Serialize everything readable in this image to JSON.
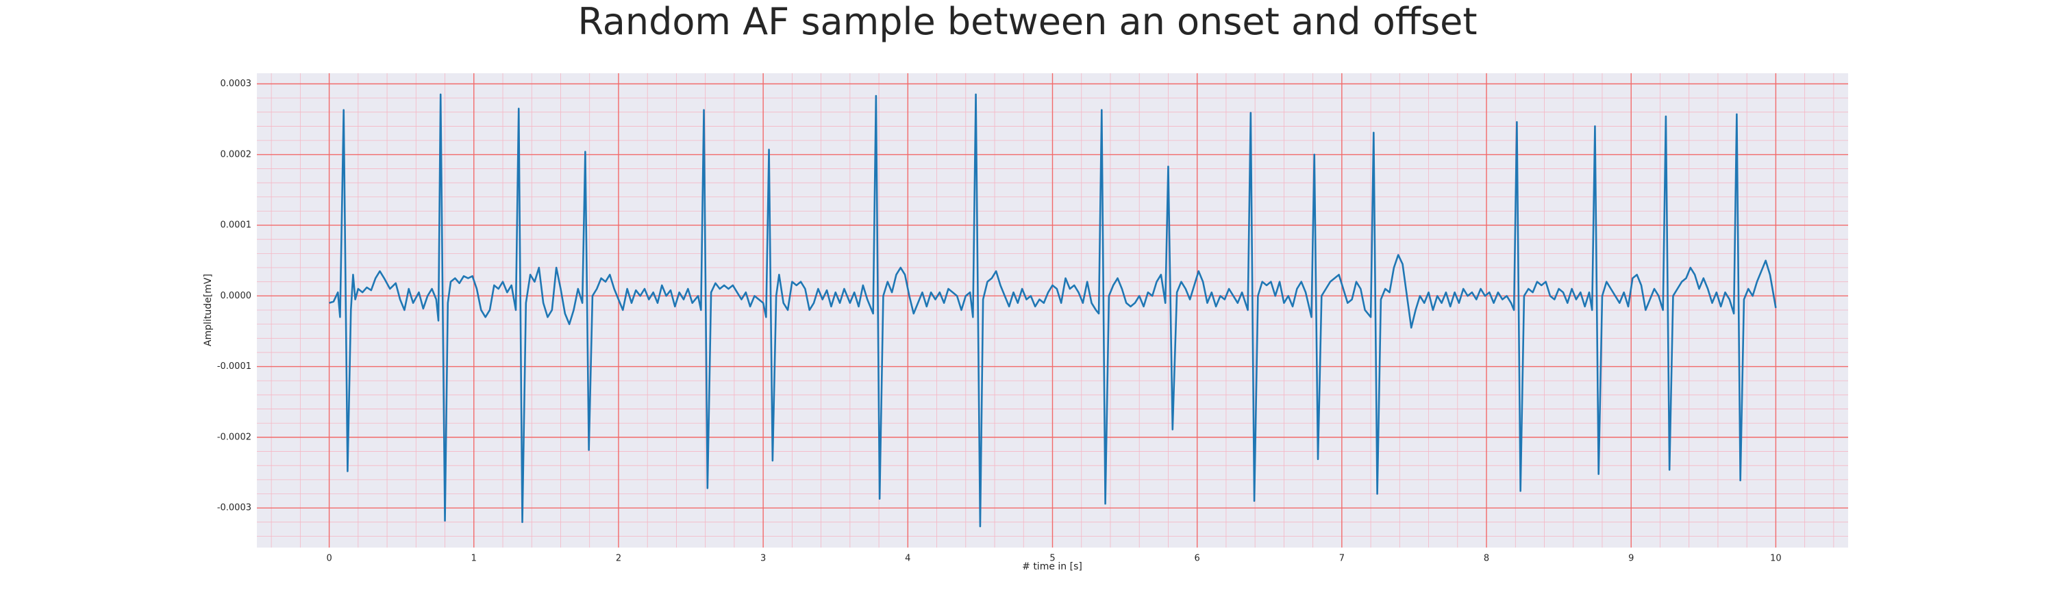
{
  "chart_data": {
    "type": "line",
    "title": "Random AF sample between an onset and offset",
    "xlabel": "# time in [s]",
    "ylabel": "Amplitude[mV]",
    "color": "#1f77b4",
    "grid": true,
    "minor_grid": true,
    "xlim": [
      -0.5,
      10.5
    ],
    "xticks": [
      0,
      1,
      2,
      3,
      4,
      5,
      6,
      7,
      8,
      9,
      10
    ],
    "ylim": [
      -0.000356,
      0.000315
    ],
    "yticks": [
      {
        "value": 0.0003,
        "label": "0.0003"
      },
      {
        "value": 0.0002,
        "label": "0.0002"
      },
      {
        "value": 0.0001,
        "label": "0.0001"
      },
      {
        "value": 0,
        "label": "0.0000"
      },
      {
        "value": -0.0001,
        "label": "-0.0001"
      },
      {
        "value": -0.0002,
        "label": "-0.0002"
      },
      {
        "value": -0.0003,
        "label": "-0.0003"
      }
    ],
    "x": [
      0,
      0.03,
      0.06,
      0.075,
      0.1,
      0.127,
      0.15,
      0.165,
      0.18,
      0.2,
      0.23,
      0.26,
      0.29,
      0.32,
      0.35,
      0.38,
      0.42,
      0.46,
      0.49,
      0.52,
      0.55,
      0.58,
      0.62,
      0.65,
      0.68,
      0.71,
      0.74,
      0.755,
      0.77,
      0.8,
      0.82,
      0.84,
      0.87,
      0.9,
      0.93,
      0.96,
      0.99,
      1.02,
      1.05,
      1.08,
      1.11,
      1.14,
      1.17,
      1.2,
      1.23,
      1.26,
      1.29,
      1.31,
      1.335,
      1.36,
      1.39,
      1.42,
      1.45,
      1.48,
      1.51,
      1.54,
      1.57,
      1.6,
      1.63,
      1.66,
      1.69,
      1.72,
      1.75,
      1.77,
      1.795,
      1.82,
      1.85,
      1.88,
      1.91,
      1.94,
      1.97,
      2.0,
      2.03,
      2.06,
      2.09,
      2.12,
      2.15,
      2.18,
      2.21,
      2.24,
      2.27,
      2.3,
      2.33,
      2.36,
      2.39,
      2.42,
      2.45,
      2.48,
      2.51,
      2.55,
      2.57,
      2.59,
      2.615,
      2.64,
      2.67,
      2.7,
      2.73,
      2.76,
      2.79,
      2.82,
      2.85,
      2.88,
      2.91,
      2.94,
      2.97,
      3.0,
      3.02,
      3.04,
      3.065,
      3.09,
      3.11,
      3.14,
      3.17,
      3.2,
      3.23,
      3.26,
      3.29,
      3.32,
      3.35,
      3.38,
      3.41,
      3.44,
      3.47,
      3.5,
      3.53,
      3.56,
      3.6,
      3.63,
      3.66,
      3.69,
      3.72,
      3.76,
      3.78,
      3.805,
      3.83,
      3.86,
      3.89,
      3.92,
      3.95,
      3.98,
      4.01,
      4.04,
      4.07,
      4.1,
      4.13,
      4.16,
      4.19,
      4.22,
      4.25,
      4.28,
      4.31,
      4.34,
      4.37,
      4.4,
      4.43,
      4.45,
      4.47,
      4.5,
      4.52,
      4.55,
      4.58,
      4.61,
      4.64,
      4.67,
      4.7,
      4.73,
      4.76,
      4.79,
      4.82,
      4.85,
      4.88,
      4.91,
      4.94,
      4.97,
      5.0,
      5.03,
      5.06,
      5.09,
      5.12,
      5.15,
      5.18,
      5.21,
      5.24,
      5.27,
      5.3,
      5.32,
      5.34,
      5.365,
      5.39,
      5.42,
      5.45,
      5.48,
      5.51,
      5.54,
      5.57,
      5.6,
      5.63,
      5.66,
      5.69,
      5.72,
      5.75,
      5.78,
      5.8,
      5.83,
      5.86,
      5.89,
      5.92,
      5.95,
      5.98,
      6.01,
      6.04,
      6.07,
      6.1,
      6.13,
      6.16,
      6.19,
      6.22,
      6.25,
      6.28,
      6.31,
      6.35,
      6.37,
      6.395,
      6.42,
      6.45,
      6.48,
      6.51,
      6.54,
      6.57,
      6.6,
      6.63,
      6.66,
      6.69,
      6.72,
      6.75,
      6.79,
      6.81,
      6.835,
      6.86,
      6.89,
      6.92,
      6.95,
      6.98,
      7.01,
      7.04,
      7.07,
      7.1,
      7.13,
      7.16,
      7.2,
      7.22,
      7.245,
      7.27,
      7.3,
      7.33,
      7.36,
      7.39,
      7.42,
      7.45,
      7.48,
      7.51,
      7.54,
      7.57,
      7.6,
      7.63,
      7.66,
      7.69,
      7.72,
      7.75,
      7.78,
      7.81,
      7.84,
      7.87,
      7.9,
      7.93,
      7.96,
      7.99,
      8.02,
      8.05,
      8.08,
      8.11,
      8.14,
      8.17,
      8.19,
      8.21,
      8.235,
      8.26,
      8.29,
      8.32,
      8.35,
      8.38,
      8.41,
      8.44,
      8.47,
      8.5,
      8.53,
      8.56,
      8.59,
      8.62,
      8.65,
      8.68,
      8.71,
      8.73,
      8.75,
      8.775,
      8.8,
      8.83,
      8.86,
      8.89,
      8.92,
      8.95,
      8.98,
      9.01,
      9.04,
      9.07,
      9.1,
      9.13,
      9.16,
      9.19,
      9.22,
      9.24,
      9.265,
      9.29,
      9.32,
      9.35,
      9.38,
      9.41,
      9.44,
      9.47,
      9.5,
      9.53,
      9.56,
      9.59,
      9.62,
      9.65,
      9.68,
      9.71,
      9.73,
      9.755,
      9.78,
      9.81,
      9.84,
      9.87,
      9.9,
      9.93,
      9.96,
      10.0
    ],
    "values": [
      -1e-05,
      -8e-06,
      5e-06,
      -3e-05,
      0.000263,
      -0.000248,
      -2e-05,
      3e-05,
      -5e-06,
      1e-05,
      5e-06,
      1.2e-05,
      8e-06,
      2.5e-05,
      3.5e-05,
      2.5e-05,
      1e-05,
      1.8e-05,
      -5e-06,
      -2e-05,
      1e-05,
      -1e-05,
      5e-06,
      -1.8e-05,
      0,
      1e-05,
      -5e-06,
      -3.5e-05,
      0.000285,
      -0.000318,
      -1e-05,
      2e-05,
      2.5e-05,
      1.8e-05,
      2.8e-05,
      2.5e-05,
      2.8e-05,
      1e-05,
      -2e-05,
      -3e-05,
      -2e-05,
      1.5e-05,
      1e-05,
      2e-05,
      5e-06,
      1.5e-05,
      -2e-05,
      0.000265,
      -0.00032,
      -1e-05,
      3e-05,
      2e-05,
      4e-05,
      -1e-05,
      -3e-05,
      -2e-05,
      4e-05,
      1e-05,
      -2.5e-05,
      -4e-05,
      -2e-05,
      1e-05,
      -1e-05,
      0.000204,
      -0.000218,
      0,
      1e-05,
      2.5e-05,
      2e-05,
      3e-05,
      1e-05,
      -5e-06,
      -2e-05,
      1e-05,
      -1e-05,
      8e-06,
      0,
      1e-05,
      -5e-06,
      5e-06,
      -1e-05,
      1.5e-05,
      0,
      8e-06,
      -1.5e-05,
      5e-06,
      -5e-06,
      1e-05,
      -1e-05,
      0,
      -2e-05,
      0.000263,
      -0.000272,
      5e-06,
      1.8e-05,
      1e-05,
      1.5e-05,
      1e-05,
      1.5e-05,
      5e-06,
      -5e-06,
      5e-06,
      -1.5e-05,
      0,
      -5e-06,
      -1e-05,
      -3e-05,
      0.000207,
      -0.000233,
      0,
      3e-05,
      -1e-05,
      -2e-05,
      2e-05,
      1.5e-05,
      2e-05,
      1e-05,
      -2e-05,
      -1e-05,
      1e-05,
      -5e-06,
      8e-06,
      -1.5e-05,
      5e-06,
      -1e-05,
      1e-05,
      -1e-05,
      5e-06,
      -1.5e-05,
      1.5e-05,
      -5e-06,
      -2.5e-05,
      0.000283,
      -0.000287,
      0,
      2e-05,
      5e-06,
      3e-05,
      4e-05,
      3e-05,
      0,
      -2.5e-05,
      -1e-05,
      5e-06,
      -1.5e-05,
      5e-06,
      -5e-06,
      5e-06,
      -1e-05,
      1e-05,
      5e-06,
      0,
      -2e-05,
      0,
      5e-06,
      -3e-05,
      0.000285,
      -0.000326,
      -5e-06,
      2e-05,
      2.5e-05,
      3.5e-05,
      1.5e-05,
      0,
      -1.5e-05,
      5e-06,
      -1e-05,
      1e-05,
      -5e-06,
      0,
      -1.5e-05,
      -5e-06,
      -1e-05,
      5e-06,
      1.5e-05,
      1e-05,
      -1e-05,
      2.5e-05,
      1e-05,
      1.5e-05,
      5e-06,
      -1e-05,
      2e-05,
      -1e-05,
      -2e-05,
      -2.5e-05,
      0.000263,
      -0.000294,
      0,
      1.5e-05,
      2.5e-05,
      1e-05,
      -1e-05,
      -1.5e-05,
      -1e-05,
      0,
      -1.5e-05,
      5e-06,
      0,
      2e-05,
      3e-05,
      -1e-05,
      0.000183,
      -0.000189,
      5e-06,
      2e-05,
      1e-05,
      -5e-06,
      1.5e-05,
      3.5e-05,
      2e-05,
      -1e-05,
      5e-06,
      -1.5e-05,
      0,
      -5e-06,
      1e-05,
      0,
      -1e-05,
      5e-06,
      -2e-05,
      0.000259,
      -0.00029,
      0,
      2e-05,
      1.5e-05,
      2e-05,
      0,
      2e-05,
      -1e-05,
      0,
      -1.5e-05,
      1e-05,
      2e-05,
      5e-06,
      -3e-05,
      0.0002,
      -0.000231,
      0,
      1e-05,
      2e-05,
      2.5e-05,
      3e-05,
      1e-05,
      -1e-05,
      -5e-06,
      2e-05,
      1e-05,
      -2e-05,
      -3e-05,
      0.000231,
      -0.00028,
      -5e-06,
      1e-05,
      5e-06,
      4e-05,
      5.8e-05,
      4.5e-05,
      0,
      -4.5e-05,
      -2e-05,
      0,
      -1e-05,
      5e-06,
      -2e-05,
      0,
      -1e-05,
      5e-06,
      -1.5e-05,
      5e-06,
      -1e-05,
      1e-05,
      0,
      5e-06,
      -5e-06,
      1e-05,
      0,
      5e-06,
      -1e-05,
      5e-06,
      -5e-06,
      0,
      -1e-05,
      -2e-05,
      0.000246,
      -0.000276,
      0,
      1e-05,
      5e-06,
      2e-05,
      1.5e-05,
      2e-05,
      0,
      -5e-06,
      1e-05,
      5e-06,
      -1e-05,
      1e-05,
      -5e-06,
      5e-06,
      -1.5e-05,
      5e-06,
      -2e-05,
      0.00024,
      -0.000252,
      0,
      2e-05,
      1e-05,
      0,
      -1e-05,
      5e-06,
      -1.5e-05,
      2.5e-05,
      3e-05,
      1.5e-05,
      -2e-05,
      -5e-06,
      1e-05,
      0,
      -2e-05,
      0.000254,
      -0.000246,
      0,
      1e-05,
      2e-05,
      2.5e-05,
      4e-05,
      3e-05,
      1e-05,
      2.5e-05,
      1e-05,
      -1e-05,
      5e-06,
      -1.5e-05,
      5e-06,
      -5e-06,
      -2.5e-05,
      0.000257,
      -0.000261,
      -5e-06,
      1e-05,
      0,
      2e-05,
      3.5e-05,
      5e-05,
      3e-05,
      -1.7e-05
    ]
  }
}
